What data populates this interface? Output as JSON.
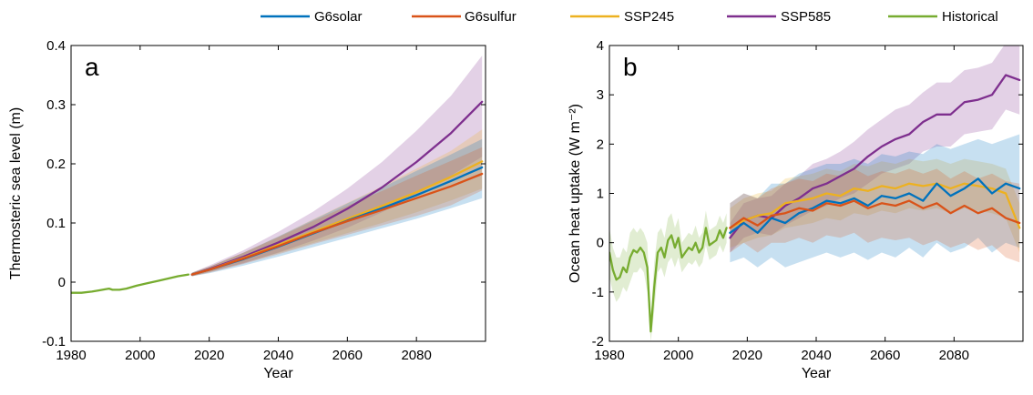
{
  "legend": [
    {
      "name": "G6solar",
      "color": "#0072BD"
    },
    {
      "name": "G6sulfur",
      "color": "#D95319"
    },
    {
      "name": "SSP245",
      "color": "#EDB120"
    },
    {
      "name": "SSP585",
      "color": "#7E2F8E"
    },
    {
      "name": "Historical",
      "color": "#77AC30"
    }
  ],
  "chart_data": [
    {
      "type": "line",
      "panel_label": "a",
      "xlabel": "Year",
      "ylabel": "Thermosteric sea level (m)",
      "xlim": [
        1980,
        2100
      ],
      "ylim": [
        -0.1,
        0.4
      ],
      "xticks": [
        1980,
        2000,
        2020,
        2040,
        2060,
        2080
      ],
      "yticks": [
        -0.1,
        0,
        0.1,
        0.2,
        0.3,
        0.4
      ],
      "ytick_labels": [
        "-0.1",
        "0",
        "0.1",
        "0.2",
        "0.3",
        "0.4"
      ],
      "series": [
        {
          "name": "Historical",
          "color": "#77AC30",
          "x": [
            1980,
            1983,
            1986,
            1988,
            1990,
            1991,
            1992,
            1994,
            1996,
            1999,
            2002,
            2005,
            2008,
            2011,
            2014
          ],
          "y": [
            -0.018,
            -0.018,
            -0.016,
            -0.014,
            -0.012,
            -0.011,
            -0.013,
            -0.013,
            -0.011,
            -0.006,
            -0.002,
            0.002,
            0.006,
            0.01,
            0.013
          ]
        },
        {
          "name": "SSP585",
          "color": "#7E2F8E",
          "x": [
            2015,
            2020,
            2030,
            2040,
            2050,
            2060,
            2070,
            2080,
            2090,
            2099
          ],
          "y": [
            0.013,
            0.022,
            0.043,
            0.067,
            0.093,
            0.124,
            0.16,
            0.203,
            0.252,
            0.305
          ],
          "band_low": [
            0.01,
            0.017,
            0.032,
            0.05,
            0.07,
            0.092,
            0.118,
            0.148,
            0.18,
            0.212
          ],
          "band_high": [
            0.016,
            0.028,
            0.054,
            0.085,
            0.119,
            0.158,
            0.203,
            0.256,
            0.315,
            0.383
          ]
        },
        {
          "name": "SSP245",
          "color": "#EDB120",
          "x": [
            2015,
            2020,
            2030,
            2040,
            2050,
            2060,
            2070,
            2080,
            2090,
            2099
          ],
          "y": [
            0.013,
            0.021,
            0.041,
            0.063,
            0.085,
            0.107,
            0.129,
            0.152,
            0.178,
            0.204
          ],
          "band_low": [
            0.01,
            0.017,
            0.033,
            0.049,
            0.066,
            0.083,
            0.1,
            0.118,
            0.138,
            0.158
          ],
          "band_high": [
            0.016,
            0.026,
            0.05,
            0.077,
            0.106,
            0.134,
            0.162,
            0.192,
            0.222,
            0.258
          ]
        },
        {
          "name": "G6solar",
          "color": "#0072BD",
          "x": [
            2015,
            2020,
            2030,
            2040,
            2050,
            2060,
            2070,
            2080,
            2090,
            2099
          ],
          "y": [
            0.013,
            0.021,
            0.039,
            0.06,
            0.082,
            0.104,
            0.125,
            0.147,
            0.171,
            0.194
          ],
          "band_low": [
            0.01,
            0.015,
            0.028,
            0.043,
            0.059,
            0.075,
            0.091,
            0.107,
            0.125,
            0.142
          ],
          "band_high": [
            0.016,
            0.026,
            0.05,
            0.077,
            0.105,
            0.133,
            0.16,
            0.188,
            0.216,
            0.242
          ]
        },
        {
          "name": "G6sulfur",
          "color": "#D95319",
          "x": [
            2015,
            2020,
            2030,
            2040,
            2050,
            2060,
            2070,
            2080,
            2090,
            2099
          ],
          "y": [
            0.013,
            0.021,
            0.04,
            0.061,
            0.083,
            0.103,
            0.122,
            0.142,
            0.162,
            0.183
          ],
          "band_low": [
            0.01,
            0.016,
            0.031,
            0.047,
            0.064,
            0.08,
            0.096,
            0.112,
            0.13,
            0.155
          ],
          "band_high": [
            0.016,
            0.026,
            0.05,
            0.076,
            0.103,
            0.129,
            0.154,
            0.18,
            0.205,
            0.228
          ]
        }
      ]
    },
    {
      "type": "line",
      "panel_label": "b",
      "xlabel": "Year",
      "ylabel": "Ocean heat uptake (W m⁻²)",
      "xlim": [
        1980,
        2100
      ],
      "ylim": [
        -2,
        4
      ],
      "xticks": [
        1980,
        2000,
        2020,
        2040,
        2060,
        2080
      ],
      "yticks": [
        -2,
        -1,
        0,
        1,
        2,
        3,
        4
      ],
      "ytick_labels": [
        "-2",
        "-1",
        "0",
        "1",
        "2",
        "3",
        "4"
      ],
      "series": [
        {
          "name": "Historical",
          "color": "#77AC30",
          "x": [
            1980,
            1981,
            1982,
            1983,
            1984,
            1985,
            1986,
            1987,
            1988,
            1989,
            1990,
            1991,
            1992,
            1993,
            1994,
            1995,
            1996,
            1997,
            1998,
            1999,
            2000,
            2001,
            2002,
            2003,
            2004,
            2005,
            2006,
            2007,
            2008,
            2009,
            2010,
            2011,
            2012,
            2013,
            2014
          ],
          "y": [
            -0.2,
            -0.55,
            -0.75,
            -0.7,
            -0.5,
            -0.6,
            -0.3,
            -0.15,
            -0.2,
            -0.1,
            -0.2,
            -0.5,
            -1.8,
            -0.9,
            -0.2,
            -0.1,
            -0.3,
            0.05,
            0.15,
            -0.1,
            0.1,
            -0.3,
            -0.2,
            -0.1,
            -0.15,
            0.0,
            -0.2,
            -0.1,
            0.3,
            -0.05,
            0.0,
            0.05,
            0.25,
            0.1,
            0.3
          ],
          "band_low": [
            -0.7,
            -1.0,
            -1.2,
            -1.1,
            -0.9,
            -1.0,
            -0.8,
            -0.6,
            -0.6,
            -0.5,
            -0.6,
            -1.0,
            -2.0,
            -1.4,
            -0.6,
            -0.5,
            -0.7,
            -0.4,
            -0.3,
            -0.5,
            -0.3,
            -0.6,
            -0.5,
            -0.4,
            -0.45,
            -0.35,
            -0.5,
            -0.4,
            -0.05,
            -0.35,
            -0.3,
            -0.25,
            -0.05,
            -0.2,
            0.0
          ],
          "band_high": [
            0.3,
            -0.1,
            -0.3,
            -0.3,
            -0.1,
            -0.2,
            0.2,
            0.3,
            0.2,
            0.3,
            0.2,
            0.0,
            -1.5,
            -0.4,
            0.2,
            0.3,
            0.1,
            0.5,
            0.6,
            0.3,
            0.5,
            0.0,
            0.1,
            0.2,
            0.15,
            0.35,
            0.1,
            0.2,
            0.65,
            0.25,
            0.3,
            0.35,
            0.55,
            0.4,
            0.6
          ]
        },
        {
          "name": "SSP585",
          "color": "#7E2F8E",
          "x": [
            2015,
            2019,
            2023,
            2027,
            2031,
            2035,
            2039,
            2043,
            2047,
            2051,
            2055,
            2059,
            2063,
            2067,
            2071,
            2075,
            2079,
            2083,
            2087,
            2091,
            2095,
            2099
          ],
          "y": [
            0.1,
            0.45,
            0.55,
            0.5,
            0.75,
            0.9,
            1.1,
            1.2,
            1.35,
            1.5,
            1.75,
            1.95,
            2.1,
            2.2,
            2.45,
            2.6,
            2.6,
            2.85,
            2.9,
            3.0,
            3.4,
            3.3
          ],
          "band_low": [
            -0.2,
            0.1,
            0.2,
            0.15,
            0.35,
            0.5,
            0.65,
            0.75,
            0.9,
            1.0,
            1.2,
            1.4,
            1.5,
            1.6,
            1.85,
            1.95,
            1.95,
            2.2,
            2.25,
            2.3,
            2.7,
            2.6
          ],
          "band_high": [
            0.4,
            0.8,
            0.9,
            0.95,
            1.2,
            1.35,
            1.6,
            1.7,
            1.85,
            2.05,
            2.3,
            2.5,
            2.7,
            2.8,
            3.05,
            3.25,
            3.25,
            3.5,
            3.55,
            3.65,
            4.05,
            4.0
          ]
        },
        {
          "name": "SSP245",
          "color": "#EDB120",
          "x": [
            2015,
            2019,
            2023,
            2027,
            2031,
            2035,
            2039,
            2043,
            2047,
            2051,
            2055,
            2059,
            2063,
            2067,
            2071,
            2075,
            2079,
            2083,
            2087,
            2091,
            2095,
            2099
          ],
          "y": [
            0.3,
            0.45,
            0.55,
            0.6,
            0.8,
            0.85,
            0.9,
            1.0,
            0.95,
            1.1,
            1.05,
            1.15,
            1.1,
            1.2,
            1.15,
            1.2,
            1.1,
            1.2,
            1.15,
            1.1,
            1.0,
            0.3
          ],
          "band_low": [
            -0.1,
            0.0,
            0.1,
            0.15,
            0.3,
            0.35,
            0.4,
            0.5,
            0.45,
            0.6,
            0.55,
            0.65,
            0.6,
            0.7,
            0.65,
            0.7,
            0.6,
            0.7,
            0.65,
            0.6,
            0.5,
            -0.2
          ],
          "band_high": [
            0.7,
            0.9,
            1.0,
            1.05,
            1.3,
            1.35,
            1.4,
            1.5,
            1.45,
            1.6,
            1.55,
            1.65,
            1.6,
            1.7,
            1.65,
            1.7,
            1.6,
            1.7,
            1.65,
            1.6,
            1.5,
            0.8
          ]
        },
        {
          "name": "G6solar",
          "color": "#0072BD",
          "x": [
            2015,
            2019,
            2023,
            2027,
            2031,
            2035,
            2039,
            2043,
            2047,
            2051,
            2055,
            2059,
            2063,
            2067,
            2071,
            2075,
            2079,
            2083,
            2087,
            2091,
            2095,
            2099
          ],
          "y": [
            0.2,
            0.4,
            0.2,
            0.5,
            0.4,
            0.6,
            0.7,
            0.85,
            0.8,
            0.9,
            0.75,
            0.95,
            0.9,
            1.0,
            0.85,
            1.2,
            0.95,
            1.1,
            1.3,
            1.0,
            1.2,
            1.1
          ],
          "band_low": [
            -0.4,
            -0.3,
            -0.5,
            -0.3,
            -0.5,
            -0.4,
            -0.3,
            -0.2,
            -0.3,
            -0.2,
            -0.35,
            -0.2,
            -0.3,
            -0.1,
            -0.3,
            0.0,
            -0.2,
            -0.1,
            0.1,
            -0.2,
            0.0,
            -0.1
          ],
          "band_high": [
            0.8,
            1.0,
            0.9,
            1.2,
            1.2,
            1.4,
            1.5,
            1.6,
            1.6,
            1.7,
            1.6,
            1.8,
            1.75,
            1.85,
            1.8,
            2.0,
            1.9,
            2.0,
            2.1,
            2.0,
            2.1,
            2.2
          ]
        },
        {
          "name": "G6sulfur",
          "color": "#D95319",
          "x": [
            2015,
            2019,
            2023,
            2027,
            2031,
            2035,
            2039,
            2043,
            2047,
            2051,
            2055,
            2059,
            2063,
            2067,
            2071,
            2075,
            2079,
            2083,
            2087,
            2091,
            2095,
            2099
          ],
          "y": [
            0.3,
            0.5,
            0.35,
            0.55,
            0.6,
            0.7,
            0.65,
            0.8,
            0.75,
            0.85,
            0.7,
            0.8,
            0.75,
            0.85,
            0.7,
            0.8,
            0.6,
            0.75,
            0.6,
            0.7,
            0.5,
            0.4
          ],
          "band_low": [
            -0.2,
            0.0,
            -0.2,
            0.0,
            0.0,
            0.1,
            0.0,
            0.15,
            0.1,
            0.2,
            0.0,
            0.1,
            0.05,
            0.1,
            -0.05,
            0.05,
            -0.1,
            0.0,
            -0.15,
            -0.05,
            -0.3,
            -0.4
          ],
          "band_high": [
            0.8,
            1.0,
            0.9,
            1.1,
            1.2,
            1.3,
            1.25,
            1.4,
            1.35,
            1.5,
            1.35,
            1.45,
            1.4,
            1.5,
            1.4,
            1.5,
            1.3,
            1.45,
            1.3,
            1.4,
            1.25,
            1.2
          ]
        }
      ]
    }
  ]
}
